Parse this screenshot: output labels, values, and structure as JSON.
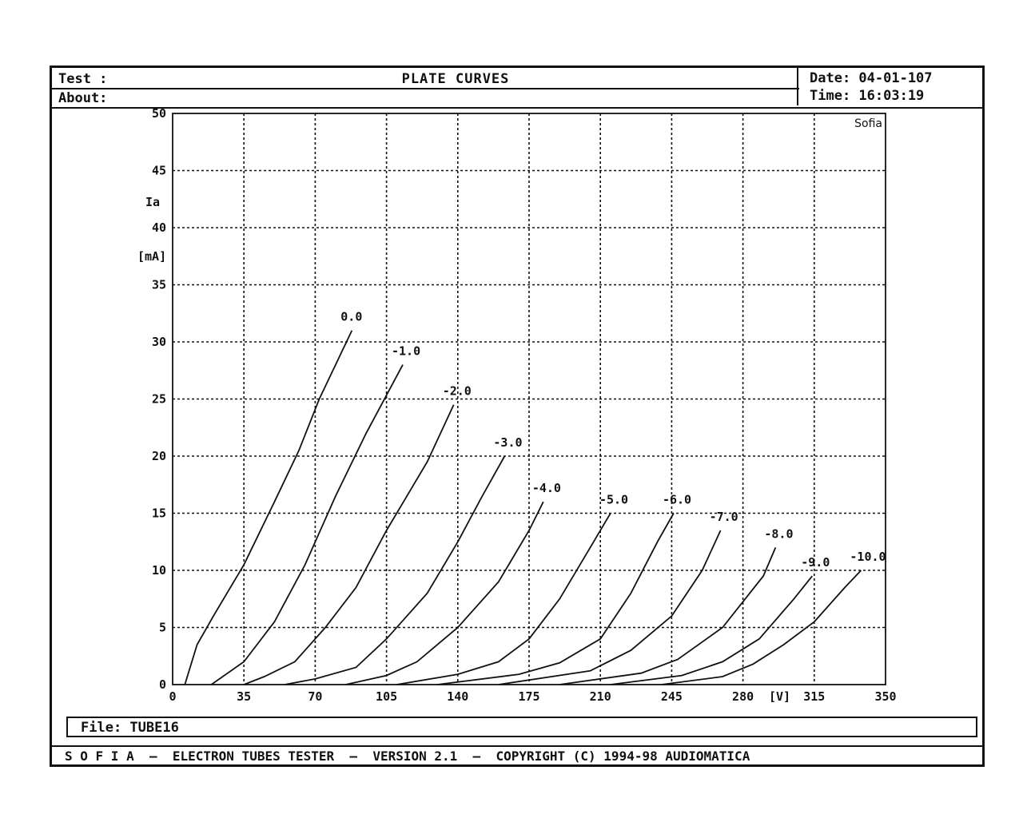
{
  "header": {
    "test_label": "Test  :",
    "about_label": "About:",
    "title": "PLATE CURVES",
    "date": "Date: 04-01-107",
    "time": "Time: 16:03:19"
  },
  "file_label": "File: TUBE16",
  "footer": "S O F I A  –  ELECTRON TUBES TESTER  –  VERSION 2.1  –  COPYRIGHT (C) 1994-98 AUDIOMATICA",
  "chart_data": {
    "type": "line",
    "title": "PLATE CURVES",
    "corner_label": "Sofia",
    "xlabel": "[V]",
    "ylabel": [
      "Ia",
      "[mA]"
    ],
    "xlim": [
      0,
      350
    ],
    "ylim": [
      0,
      50
    ],
    "x_ticks": [
      "0",
      "35",
      "70",
      "105",
      "140",
      "175",
      "210",
      "245",
      "280",
      "315",
      "350"
    ],
    "y_ticks": [
      "0",
      "5",
      "10",
      "15",
      "20",
      "25",
      "30",
      "35",
      "40",
      "45",
      "50"
    ],
    "grid": true,
    "series": [
      {
        "name": "0.0",
        "points": [
          [
            6,
            0
          ],
          [
            12,
            3.5
          ],
          [
            20,
            6
          ],
          [
            35,
            10.5
          ],
          [
            50,
            16
          ],
          [
            62,
            20.5
          ],
          [
            72,
            25
          ],
          [
            88,
            31
          ]
        ]
      },
      {
        "name": "-1.0",
        "points": [
          [
            19,
            0
          ],
          [
            35,
            2
          ],
          [
            50,
            5.5
          ],
          [
            65,
            10.5
          ],
          [
            80,
            16.5
          ],
          [
            95,
            22
          ],
          [
            113,
            28
          ]
        ]
      },
      {
        "name": "-2.0",
        "points": [
          [
            35,
            0
          ],
          [
            45,
            0.7
          ],
          [
            60,
            2
          ],
          [
            75,
            5
          ],
          [
            90,
            8.5
          ],
          [
            105,
            13.5
          ],
          [
            125,
            19.5
          ],
          [
            138,
            24.5
          ]
        ]
      },
      {
        "name": "-3.0",
        "points": [
          [
            55,
            0
          ],
          [
            70,
            0.5
          ],
          [
            90,
            1.5
          ],
          [
            105,
            4
          ],
          [
            125,
            8
          ],
          [
            140,
            12.5
          ],
          [
            152,
            16.5
          ],
          [
            163,
            20
          ]
        ]
      },
      {
        "name": "-4.0",
        "points": [
          [
            85,
            0
          ],
          [
            105,
            0.8
          ],
          [
            120,
            2
          ],
          [
            140,
            5
          ],
          [
            160,
            9
          ],
          [
            175,
            13.5
          ],
          [
            182,
            16
          ]
        ]
      },
      {
        "name": "-5.0",
        "points": [
          [
            110,
            0
          ],
          [
            140,
            0.9
          ],
          [
            160,
            2
          ],
          [
            175,
            4
          ],
          [
            190,
            7.5
          ],
          [
            205,
            12
          ],
          [
            215,
            15
          ]
        ]
      },
      {
        "name": "-6.0",
        "points": [
          [
            130,
            0
          ],
          [
            170,
            0.9
          ],
          [
            190,
            1.9
          ],
          [
            210,
            4
          ],
          [
            225,
            8
          ],
          [
            238,
            12.5
          ],
          [
            246,
            15
          ]
        ]
      },
      {
        "name": "-7.0",
        "points": [
          [
            160,
            0
          ],
          [
            205,
            1.2
          ],
          [
            225,
            3
          ],
          [
            245,
            6
          ],
          [
            260,
            10
          ],
          [
            269,
            13.5
          ]
        ]
      },
      {
        "name": "-8.0",
        "points": [
          [
            190,
            0
          ],
          [
            230,
            1
          ],
          [
            248,
            2.2
          ],
          [
            270,
            5
          ],
          [
            290,
            9.5
          ],
          [
            296,
            12
          ]
        ]
      },
      {
        "name": "-9.0",
        "points": [
          [
            215,
            0
          ],
          [
            250,
            0.8
          ],
          [
            270,
            2
          ],
          [
            288,
            4
          ],
          [
            305,
            7.5
          ],
          [
            314,
            9.5
          ]
        ]
      },
      {
        "name": "-10.0",
        "points": [
          [
            240,
            0
          ],
          [
            270,
            0.7
          ],
          [
            285,
            1.8
          ],
          [
            300,
            3.5
          ],
          [
            315,
            5.5
          ],
          [
            330,
            8.5
          ],
          [
            338,
            10
          ]
        ]
      }
    ]
  }
}
